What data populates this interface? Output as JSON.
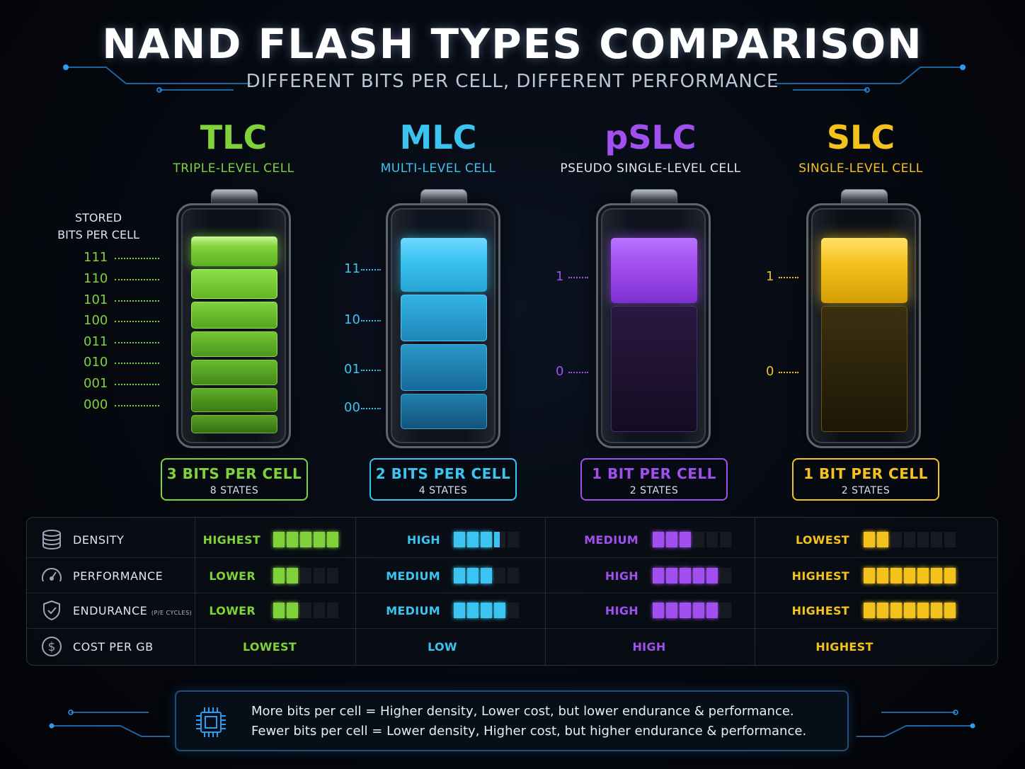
{
  "title": "NAND FLASH TYPES COMPARISON",
  "subtitle": "DIFFERENT BITS PER CELL, DIFFERENT PERFORMANCE",
  "stored_label_1": "STORED",
  "stored_label_2": "BITS PER CELL",
  "colors": {
    "tlc": "#7fd23a",
    "mlc": "#3cc4f0",
    "pslc": "#a24ff0",
    "slc": "#f4c21c"
  },
  "types": [
    {
      "abbr": "TLC",
      "full": "TRIPLE-LEVEL CELL",
      "bits": "3 BITS PER CELL",
      "states": "8 STATES",
      "levels": [
        "111",
        "110",
        "101",
        "100",
        "011",
        "010",
        "001",
        "000"
      ]
    },
    {
      "abbr": "MLC",
      "full": "MULTI-LEVEL CELL",
      "bits": "2 BITS PER CELL",
      "states": "4 STATES",
      "levels": [
        "11",
        "10",
        "01",
        "00"
      ]
    },
    {
      "abbr": "pSLC",
      "full": "PSEUDO SINGLE-LEVEL CELL",
      "bits": "1 BIT PER CELL",
      "states": "2 STATES",
      "levels": [
        "1",
        "0"
      ]
    },
    {
      "abbr": "SLC",
      "full": "SINGLE-LEVEL CELL",
      "bits": "1 BIT PER CELL",
      "states": "2 STATES",
      "levels": [
        "1",
        "0"
      ]
    }
  ],
  "metrics": [
    {
      "label": "DENSITY",
      "icon": "database-icon",
      "small": "",
      "values": [
        "HIGHEST",
        "HIGH",
        "MEDIUM",
        "LOWEST"
      ],
      "bars": [
        [
          5,
          5
        ],
        [
          3.5,
          5
        ],
        [
          3,
          6
        ],
        [
          2,
          7
        ]
      ]
    },
    {
      "label": "PERFORMANCE",
      "icon": "speedometer-icon",
      "small": "",
      "values": [
        "LOWER",
        "MEDIUM",
        "HIGH",
        "HIGHEST"
      ],
      "bars": [
        [
          2,
          5
        ],
        [
          3,
          5
        ],
        [
          5,
          6
        ],
        [
          7,
          7
        ]
      ]
    },
    {
      "label": "ENDURANCE",
      "icon": "shield-check-icon",
      "small": "(P/E CYCLES)",
      "values": [
        "LOWER",
        "MEDIUM",
        "HIGH",
        "HIGHEST"
      ],
      "bars": [
        [
          2,
          5
        ],
        [
          4,
          5
        ],
        [
          5,
          6
        ],
        [
          7,
          7
        ]
      ]
    },
    {
      "label": "COST PER GB",
      "icon": "dollar-icon",
      "small": "",
      "values": [
        "LOWEST",
        "LOW",
        "HIGH",
        "HIGHEST"
      ]
    }
  ],
  "note": {
    "line1": "More bits per cell = Higher density, Lower cost, but lower endurance & performance.",
    "line2": "Fewer bits per cell = Lower density,  Higher cost, but higher endurance & performance."
  }
}
